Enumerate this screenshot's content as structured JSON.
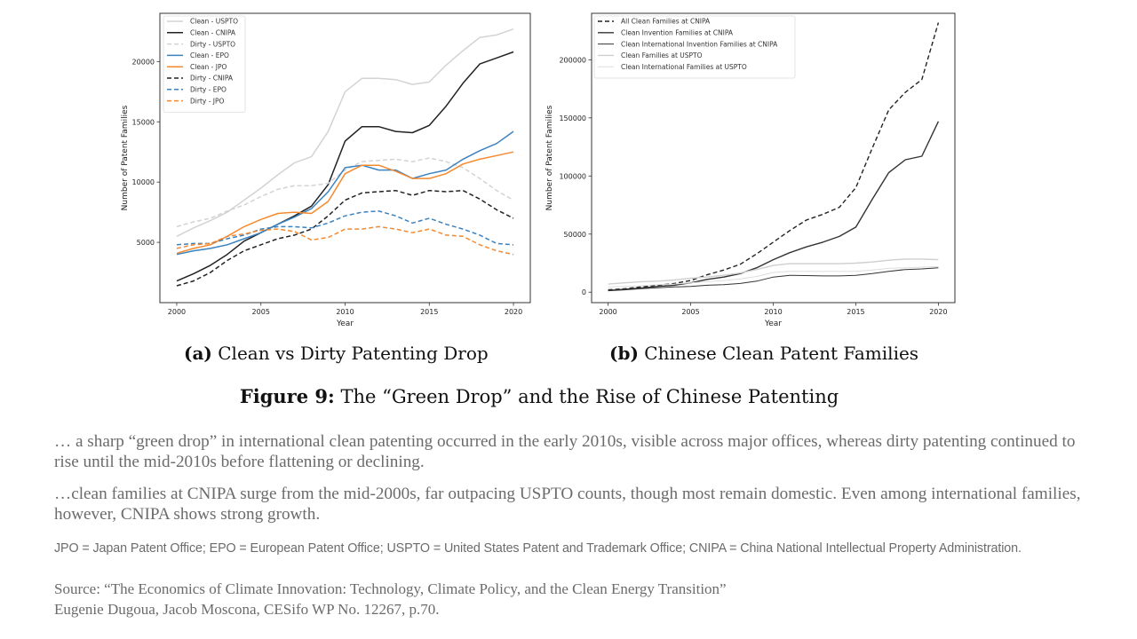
{
  "chart_data": [
    {
      "type": "line",
      "panel": "a",
      "title": "",
      "xlabel": "Year",
      "ylabel": "Number of Patent Families",
      "xlim": [
        1999,
        2021
      ],
      "ylim": [
        0,
        24000
      ],
      "xticks": [
        2000,
        2005,
        2010,
        2015,
        2020
      ],
      "yticks": [
        5000,
        10000,
        15000,
        20000
      ],
      "grid": false,
      "legend_position": "top-left",
      "x": [
        2000,
        2001,
        2002,
        2003,
        2004,
        2005,
        2006,
        2007,
        2008,
        2009,
        2010,
        2011,
        2012,
        2013,
        2014,
        2015,
        2016,
        2017,
        2018,
        2019,
        2020
      ],
      "series": [
        {
          "name": "Clean - USPTO",
          "color": "#d3d3d3",
          "dash": false,
          "values": [
            5500,
            6200,
            6800,
            7500,
            8500,
            9500,
            10600,
            11600,
            12100,
            14200,
            17500,
            18600,
            18600,
            18500,
            18100,
            18300,
            19700,
            20900,
            22000,
            22200,
            22700
          ]
        },
        {
          "name": "Clean - CNIPA",
          "color": "#222222",
          "dash": false,
          "values": [
            1800,
            2400,
            3100,
            4000,
            5100,
            5800,
            6500,
            7200,
            8000,
            9800,
            13400,
            14600,
            14600,
            14200,
            14100,
            14700,
            16300,
            18200,
            19800,
            20300,
            20800
          ]
        },
        {
          "name": "Dirty - USPTO",
          "color": "#d3d3d3",
          "dash": true,
          "values": [
            6300,
            6700,
            7000,
            7600,
            8100,
            8800,
            9400,
            9700,
            9700,
            9900,
            11000,
            11700,
            11800,
            11900,
            11700,
            12000,
            11700,
            11200,
            10300,
            9300,
            8500
          ]
        },
        {
          "name": "Clean - EPO",
          "color": "#3b82c0",
          "dash": false,
          "values": [
            4000,
            4300,
            4500,
            4800,
            5300,
            5800,
            6500,
            7100,
            7800,
            9200,
            11200,
            11400,
            11000,
            11000,
            10300,
            10700,
            11000,
            11900,
            12600,
            13200,
            14200
          ]
        },
        {
          "name": "Clean - JPO",
          "color": "#f5892e",
          "dash": false,
          "values": [
            4100,
            4500,
            4800,
            5500,
            6300,
            6900,
            7400,
            7500,
            7400,
            8400,
            10700,
            11400,
            11400,
            10900,
            10300,
            10300,
            10700,
            11500,
            11900,
            12200,
            12500
          ]
        },
        {
          "name": "Dirty - CNIPA",
          "color": "#222222",
          "dash": true,
          "values": [
            1400,
            1800,
            2500,
            3500,
            4300,
            4800,
            5300,
            5600,
            6100,
            7200,
            8500,
            9100,
            9200,
            9300,
            8900,
            9300,
            9200,
            9300,
            8600,
            7700,
            7000
          ]
        },
        {
          "name": "Dirty - EPO",
          "color": "#3b82c0",
          "dash": true,
          "values": [
            4800,
            4900,
            4900,
            5300,
            5600,
            6100,
            6300,
            6300,
            6200,
            6600,
            7200,
            7500,
            7600,
            7200,
            6600,
            7000,
            6500,
            6100,
            5600,
            4900,
            4800
          ]
        },
        {
          "name": "Dirty - JPO",
          "color": "#f5892e",
          "dash": true,
          "values": [
            4500,
            4800,
            4900,
            5500,
            5700,
            6000,
            6100,
            5900,
            5200,
            5400,
            6100,
            6100,
            6300,
            6100,
            5800,
            6100,
            5600,
            5500,
            4800,
            4300,
            4000
          ]
        }
      ]
    },
    {
      "type": "line",
      "panel": "b",
      "title": "",
      "xlabel": "Year",
      "ylabel": "Number of Patent Families",
      "xlim": [
        1999,
        2021
      ],
      "ylim": [
        -9000,
        240000
      ],
      "xticks": [
        2000,
        2005,
        2010,
        2015,
        2020
      ],
      "yticks": [
        0,
        50000,
        100000,
        150000,
        200000
      ],
      "grid": false,
      "legend_position": "top-left",
      "x": [
        2000,
        2001,
        2002,
        2003,
        2004,
        2005,
        2006,
        2007,
        2008,
        2009,
        2010,
        2011,
        2012,
        2013,
        2014,
        2015,
        2016,
        2017,
        2018,
        2019,
        2020
      ],
      "series": [
        {
          "name": "All Clean Families at CNIPA",
          "color": "#222222",
          "dash": true,
          "width": 1.4,
          "values": [
            2000,
            3000,
            4500,
            6000,
            7500,
            10000,
            15000,
            19000,
            24000,
            33000,
            43000,
            53000,
            62000,
            67000,
            73000,
            90000,
            124000,
            157000,
            172000,
            183000,
            232000
          ]
        },
        {
          "name": "Clean Invention Families at CNIPA",
          "color": "#333333",
          "dash": false,
          "width": 1.4,
          "values": [
            1500,
            2500,
            3500,
            5000,
            6000,
            8000,
            11000,
            13000,
            16000,
            21000,
            28000,
            34000,
            39000,
            43000,
            48000,
            56000,
            80000,
            103000,
            114000,
            117000,
            147000
          ]
        },
        {
          "name": "Clean International Invention Families at CNIPA",
          "color": "#333333",
          "dash": false,
          "width": 1,
          "values": [
            1200,
            2000,
            3000,
            3800,
            4500,
            5000,
            6000,
            6500,
            7500,
            9500,
            13000,
            14500,
            14300,
            14000,
            14000,
            14500,
            16000,
            18000,
            19500,
            20000,
            21000
          ]
        },
        {
          "name": "Clean Families at USPTO",
          "color": "#cfcfcf",
          "dash": false,
          "width": 1.4,
          "values": [
            7000,
            8000,
            9000,
            9500,
            10500,
            12000,
            13000,
            14500,
            16500,
            19500,
            23000,
            24500,
            24500,
            24500,
            24500,
            25000,
            26000,
            27500,
            28500,
            28500,
            28000
          ]
        },
        {
          "name": "Clean International Families at USPTO",
          "color": "#dddddd",
          "dash": false,
          "width": 1,
          "values": [
            4500,
            5000,
            5500,
            6500,
            7000,
            8000,
            9000,
            10000,
            11500,
            13500,
            17000,
            18000,
            18000,
            18000,
            18000,
            18000,
            19000,
            20500,
            21000,
            21500,
            22000
          ]
        }
      ]
    }
  ],
  "captions": {
    "a_label": "(a)",
    "a_text": "Clean vs Dirty Patenting Drop",
    "b_label": "(b)",
    "b_text": "Chinese Clean Patent Families",
    "figure_label": "Figure 9:",
    "figure_text": "The “Green Drop” and the Rise of Chinese Patenting"
  },
  "notes": {
    "para1": "… a sharp “green drop” in international clean patenting occurred in the early 2010s, visible across major offices, whereas dirty patenting continued to rise until the mid-2010s before flattening or declining.",
    "para2": "…clean families at CNIPA surge from the mid-2000s, far outpacing USPTO counts, though most remain domestic. Even among international families, however, CNIPA shows strong growth.",
    "abbreviations": "JPO = Japan Patent Office; EPO = European Patent Office; USPTO = United States Patent and Trademark Office; CNIPA = China National Intellectual Property Administration.",
    "source_line1": "Source: “The Economics of Climate Innovation: Technology, Climate Policy, and the Clean Energy Transition”",
    "source_line2": "Eugenie Dugoua, Jacob Moscona, CESifo WP No. 12267, p.70."
  }
}
